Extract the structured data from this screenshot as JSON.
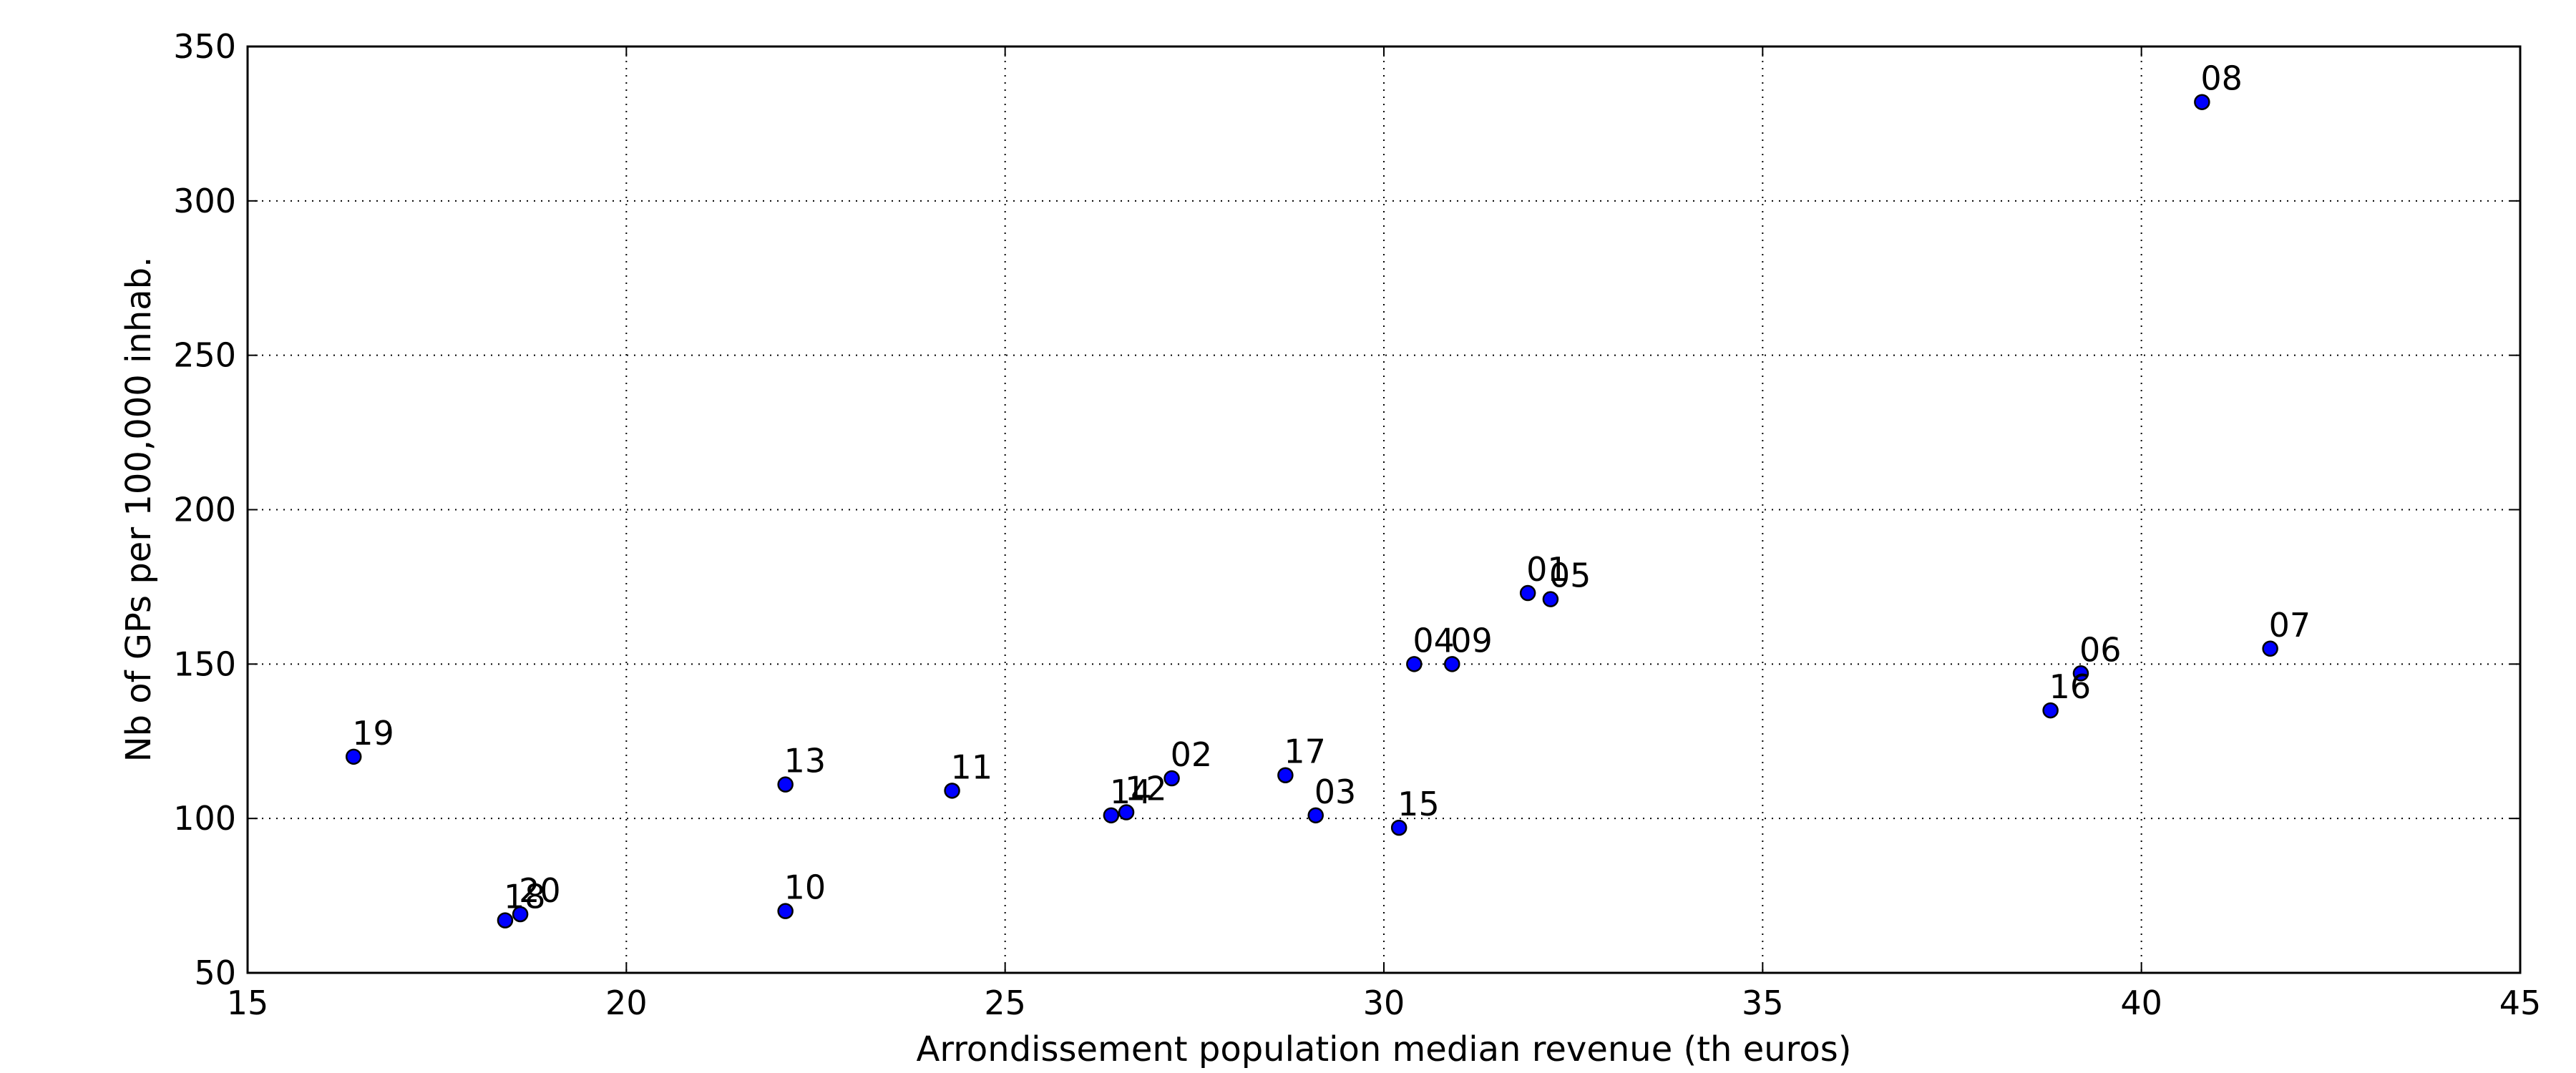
{
  "chart_data": {
    "type": "scatter",
    "title": "",
    "xlabel": "Arrondissement population median revenue (th euros)",
    "ylabel": "Nb of GPs per 100,000 inhab.",
    "xlim": [
      15,
      45
    ],
    "ylim": [
      50,
      350
    ],
    "xticks": [
      15,
      20,
      25,
      30,
      35,
      40,
      45
    ],
    "yticks": [
      50,
      100,
      150,
      200,
      250,
      300,
      350
    ],
    "grid": true,
    "marker_color": "#0000ff",
    "marker_edge_color": "#000000",
    "points": [
      {
        "label": "01",
        "x": 31.9,
        "y": 173
      },
      {
        "label": "02",
        "x": 27.2,
        "y": 113
      },
      {
        "label": "03",
        "x": 29.1,
        "y": 101
      },
      {
        "label": "04",
        "x": 30.4,
        "y": 150
      },
      {
        "label": "05",
        "x": 32.2,
        "y": 171
      },
      {
        "label": "06",
        "x": 39.2,
        "y": 147
      },
      {
        "label": "07",
        "x": 41.7,
        "y": 155
      },
      {
        "label": "08",
        "x": 40.8,
        "y": 332
      },
      {
        "label": "09",
        "x": 30.9,
        "y": 150
      },
      {
        "label": "10",
        "x": 22.1,
        "y": 70
      },
      {
        "label": "11",
        "x": 24.3,
        "y": 109
      },
      {
        "label": "12",
        "x": 26.6,
        "y": 102
      },
      {
        "label": "13",
        "x": 22.1,
        "y": 111
      },
      {
        "label": "14",
        "x": 26.4,
        "y": 101
      },
      {
        "label": "15",
        "x": 30.2,
        "y": 97
      },
      {
        "label": "16",
        "x": 38.8,
        "y": 135
      },
      {
        "label": "17",
        "x": 28.7,
        "y": 114
      },
      {
        "label": "18",
        "x": 18.4,
        "y": 67
      },
      {
        "label": "19",
        "x": 16.4,
        "y": 120
      },
      {
        "label": "20",
        "x": 18.6,
        "y": 69
      }
    ]
  }
}
